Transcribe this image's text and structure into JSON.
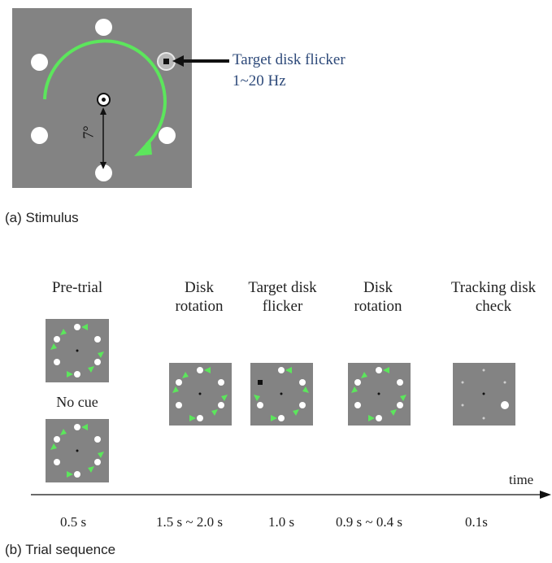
{
  "stimulus": {
    "annotation_line1": "Target disk flicker",
    "annotation_line2": "1~20 Hz",
    "distance_label": "7°",
    "caption": "(a) Stimulus"
  },
  "sequence": {
    "stages": [
      {
        "label_line1": "Pre-trial",
        "label_line2": "",
        "duration": "0.5 s"
      },
      {
        "label_line1": "Disk",
        "label_line2": "rotation",
        "duration": "1.5 s ~ 2.0 s"
      },
      {
        "label_line1": "Target disk",
        "label_line2": "flicker",
        "duration": "1.0 s"
      },
      {
        "label_line1": "Disk",
        "label_line2": "rotation",
        "duration": "0.9 s ~ 0.4 s"
      },
      {
        "label_line1": "Tracking disk",
        "label_line2": "check",
        "duration": "0.1s"
      }
    ],
    "no_cue_label": "No cue",
    "time_axis_label": "time",
    "caption": "(b) Trial sequence"
  },
  "colors": {
    "panel_gray": "#838383",
    "disk_white": "#ffffff",
    "arrow_green": "#5ce65c",
    "annotation_blue": "#2e4a7a"
  }
}
